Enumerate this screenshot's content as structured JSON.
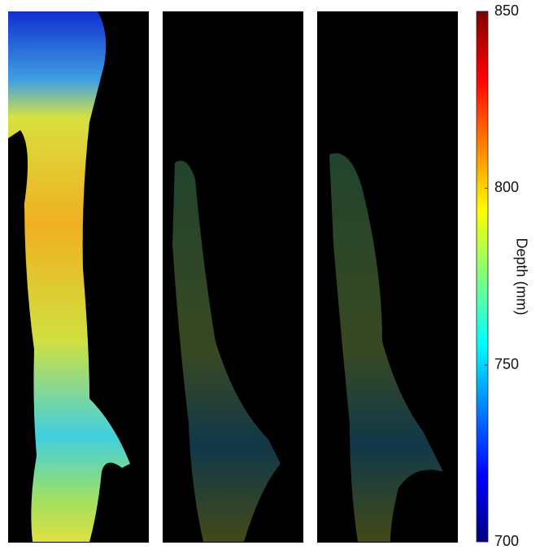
{
  "chart_data": {
    "type": "colorbar",
    "colormap": "jet",
    "colorbar_label": "Depth (mm)",
    "clim": [
      700,
      850
    ],
    "cticks": [
      700,
      750,
      800,
      850
    ]
  }
}
